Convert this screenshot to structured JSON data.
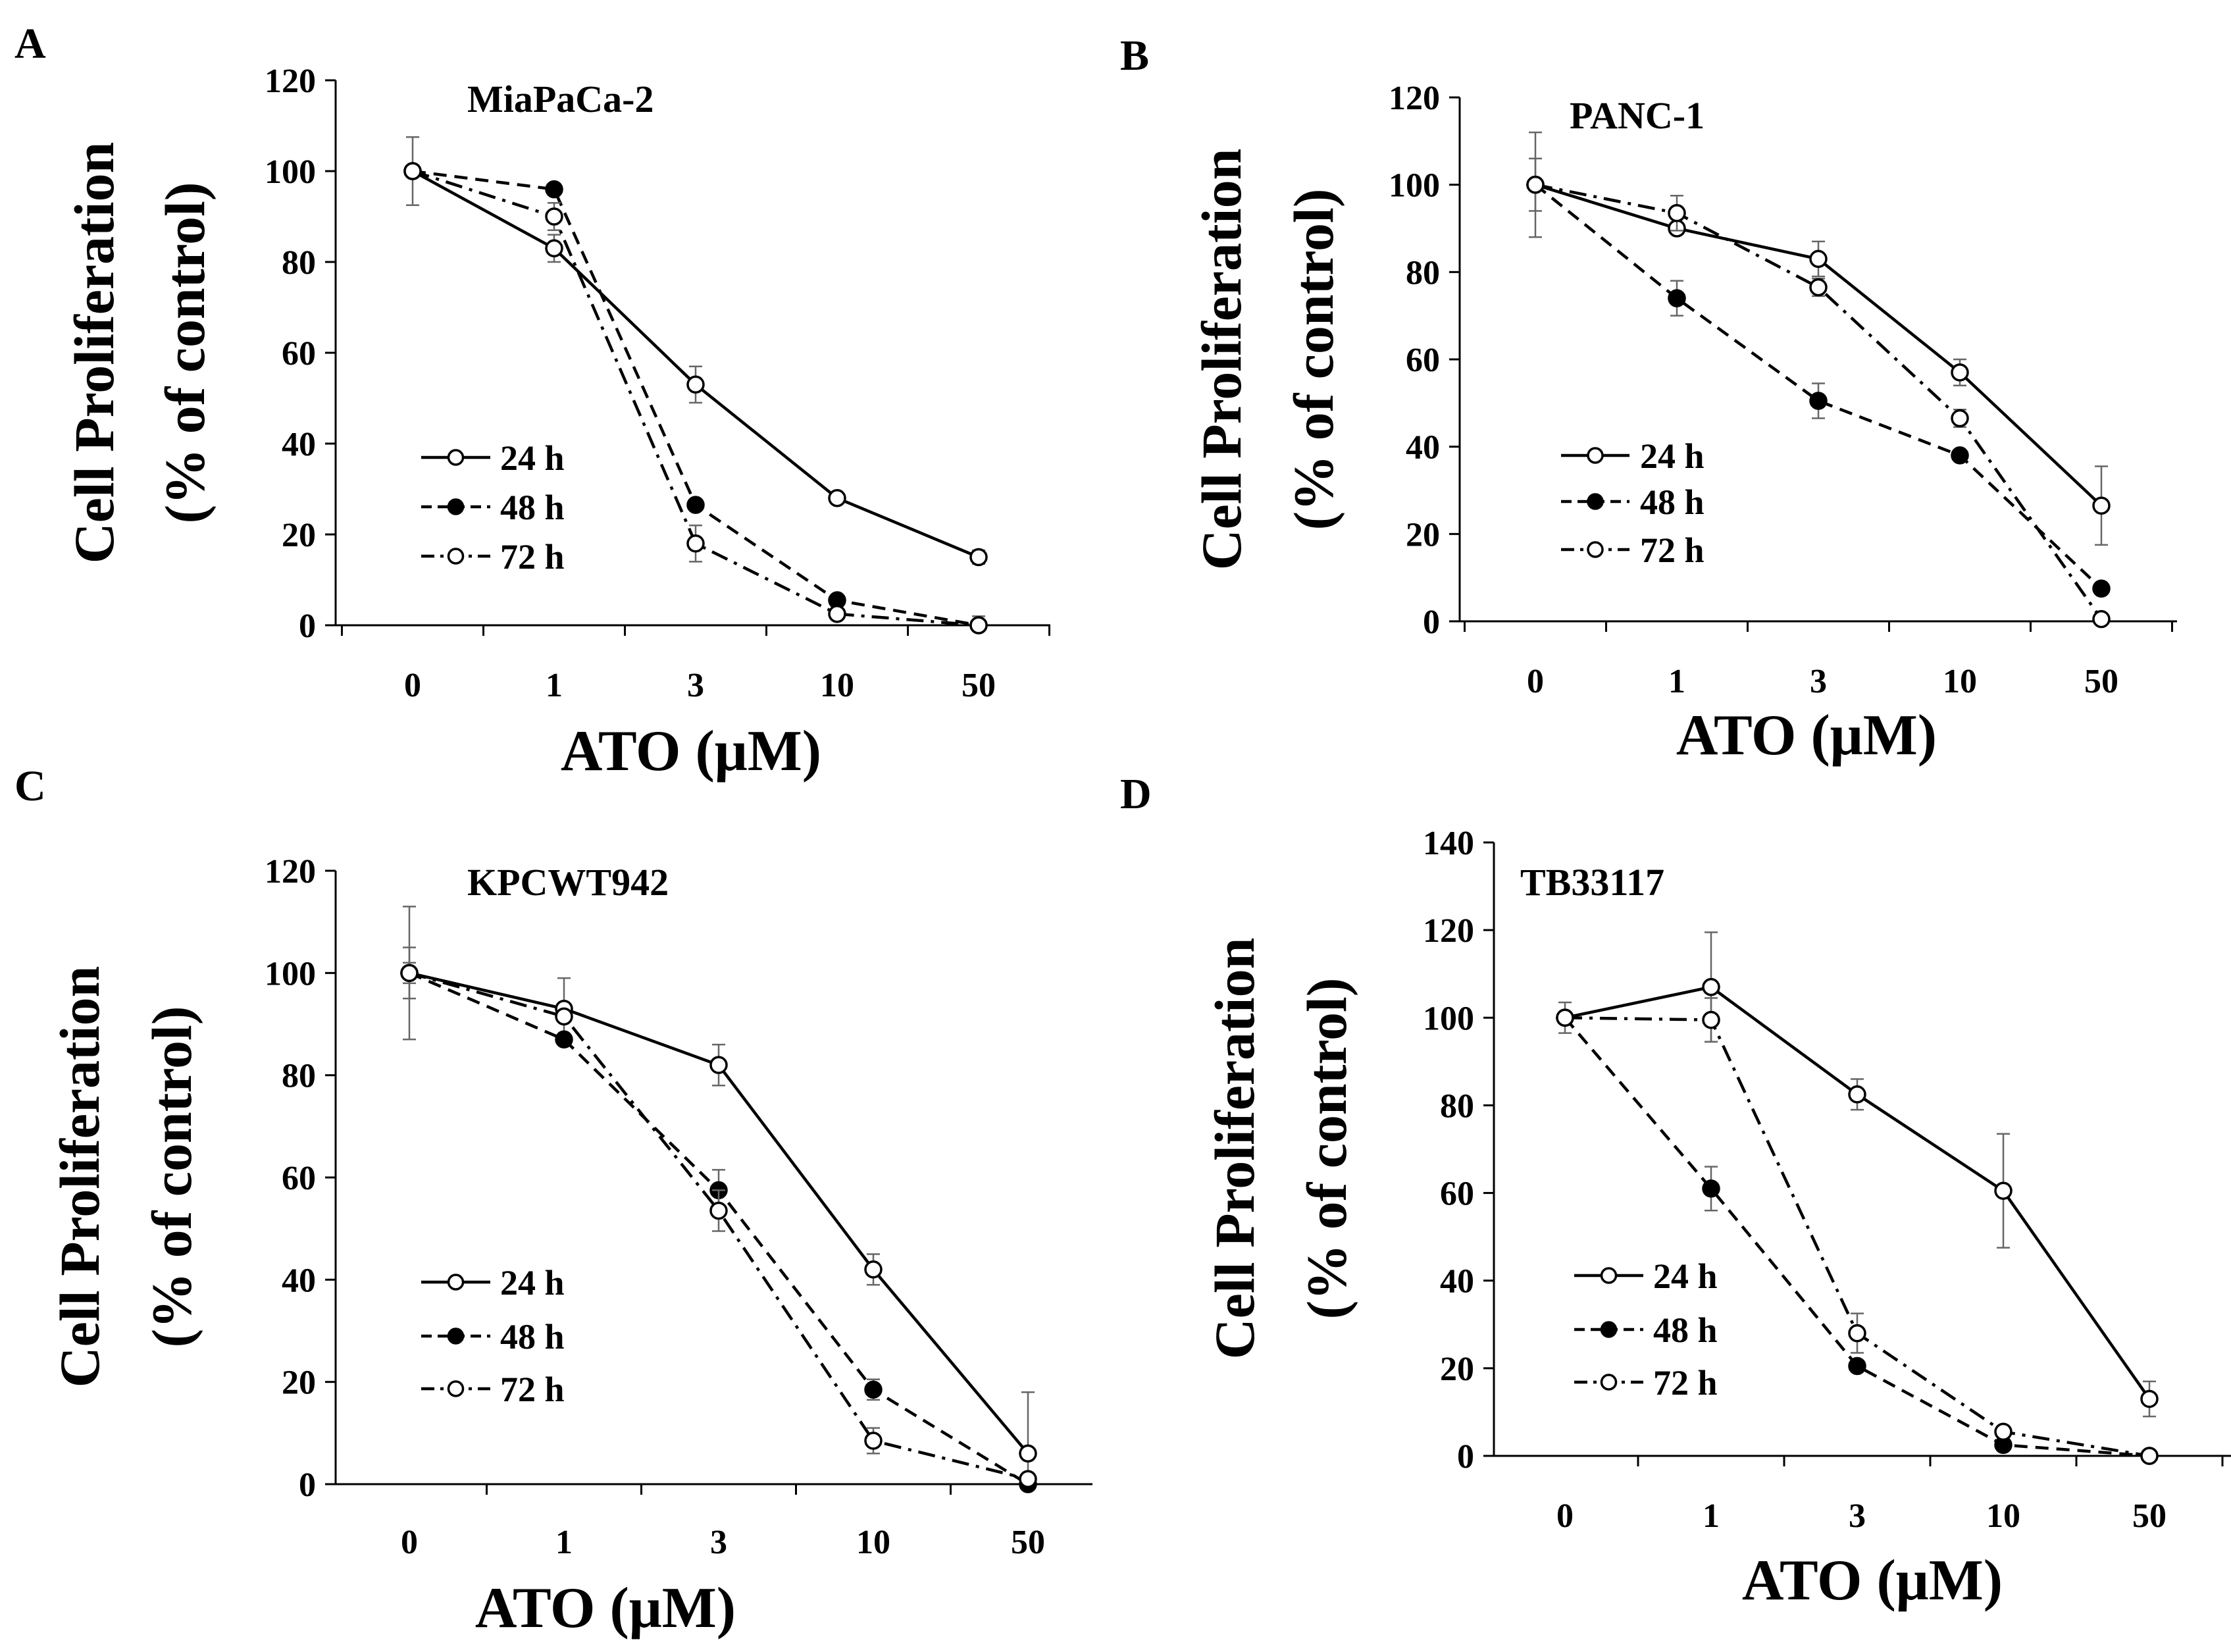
{
  "chart_data": [
    {
      "panel": "A",
      "type": "line",
      "title": "MiaPaCa-2",
      "xlabel": "ATO (μM)",
      "ylabel": [
        "Cell Proliferation",
        "(% of control)"
      ],
      "categories": [
        "0",
        "1",
        "3",
        "10",
        "50"
      ],
      "ylim": [
        0,
        120
      ],
      "yticks": [
        "0",
        "20",
        "40",
        "60",
        "80",
        "100",
        "120"
      ],
      "series": [
        {
          "name": "24 h",
          "style": "solid",
          "marker": "open",
          "values": [
            100,
            83,
            53,
            28,
            15
          ],
          "errors": [
            7.5,
            3,
            4,
            0.5,
            1.5
          ]
        },
        {
          "name": "48 h",
          "style": "dashed",
          "marker": "filled",
          "values": [
            100,
            96,
            26.5,
            5.5,
            0
          ],
          "errors": [
            0,
            1,
            0,
            0,
            2
          ]
        },
        {
          "name": "72 h",
          "style": "dashdot",
          "marker": "open",
          "values": [
            100,
            90,
            18,
            2.5,
            0
          ],
          "errors": [
            0,
            3,
            4,
            1,
            1
          ]
        }
      ]
    },
    {
      "panel": "B",
      "type": "line",
      "title": "PANC-1",
      "xlabel": "ATO (μM)",
      "ylabel": [
        "Cell Proliferation",
        "(% of control)"
      ],
      "categories": [
        "0",
        "1",
        "3",
        "10",
        "50"
      ],
      "ylim": [
        0,
        120
      ],
      "yticks": [
        "0",
        "20",
        "40",
        "60",
        "80",
        "100",
        "120"
      ],
      "series": [
        {
          "name": "24 h",
          "style": "solid",
          "marker": "open",
          "values": [
            100,
            90,
            83,
            57,
            26.5
          ],
          "errors": [
            12,
            0,
            4,
            3,
            9
          ]
        },
        {
          "name": "48 h",
          "style": "dashed",
          "marker": "filled",
          "values": [
            100,
            74,
            50.5,
            38,
            7.5
          ],
          "errors": [
            0,
            4,
            4,
            1,
            0
          ]
        },
        {
          "name": "72 h",
          "style": "dashdot",
          "marker": "open",
          "values": [
            100,
            93.5,
            76.5,
            46.5,
            0.5
          ],
          "errors": [
            6,
            4,
            2,
            2,
            0
          ]
        }
      ]
    },
    {
      "panel": "C",
      "type": "line",
      "title": "KPCWT942",
      "xlabel": "ATO (μM)",
      "ylabel": [
        "Cell Proliferation",
        "(% of control)"
      ],
      "categories": [
        "0",
        "1",
        "3",
        "10",
        "50"
      ],
      "ylim": [
        0,
        120
      ],
      "yticks": [
        "0",
        "20",
        "40",
        "60",
        "80",
        "100",
        "120"
      ],
      "series": [
        {
          "name": "24 h",
          "style": "solid",
          "marker": "open",
          "values": [
            100,
            93,
            82,
            42,
            6
          ],
          "errors": [
            13,
            6,
            4,
            3,
            12
          ]
        },
        {
          "name": "48 h",
          "style": "dashed",
          "marker": "filled",
          "values": [
            100,
            87,
            57.5,
            18.5,
            0
          ],
          "errors": [
            2,
            0,
            4,
            2,
            0
          ]
        },
        {
          "name": "72 h",
          "style": "dashdot",
          "marker": "open",
          "values": [
            100,
            91.5,
            53.5,
            8.5,
            1
          ],
          "errors": [
            5,
            0,
            4,
            2.5,
            0
          ]
        }
      ]
    },
    {
      "panel": "D",
      "type": "line",
      "title": "TB33117",
      "xlabel": "ATO (μM)",
      "ylabel": [
        "Cell Proliferation",
        "(% of control)"
      ],
      "categories": [
        "0",
        "1",
        "3",
        "10",
        "50"
      ],
      "ylim": [
        0,
        140
      ],
      "yticks": [
        "0",
        "20",
        "40",
        "60",
        "80",
        "100",
        "120",
        "140"
      ],
      "series": [
        {
          "name": "24 h",
          "style": "solid",
          "marker": "open",
          "values": [
            100,
            107,
            82.5,
            60.5,
            13
          ],
          "errors": [
            3.5,
            12.5,
            3.5,
            13,
            4
          ]
        },
        {
          "name": "48 h",
          "style": "dashed",
          "marker": "filled",
          "values": [
            100,
            61,
            20.5,
            2.5,
            0
          ],
          "errors": [
            0,
            5,
            0,
            1,
            0
          ]
        },
        {
          "name": "72 h",
          "style": "dashdot",
          "marker": "open",
          "values": [
            100,
            99.5,
            28,
            5.5,
            0
          ],
          "errors": [
            0,
            5,
            4.5,
            1,
            0
          ]
        }
      ]
    }
  ]
}
